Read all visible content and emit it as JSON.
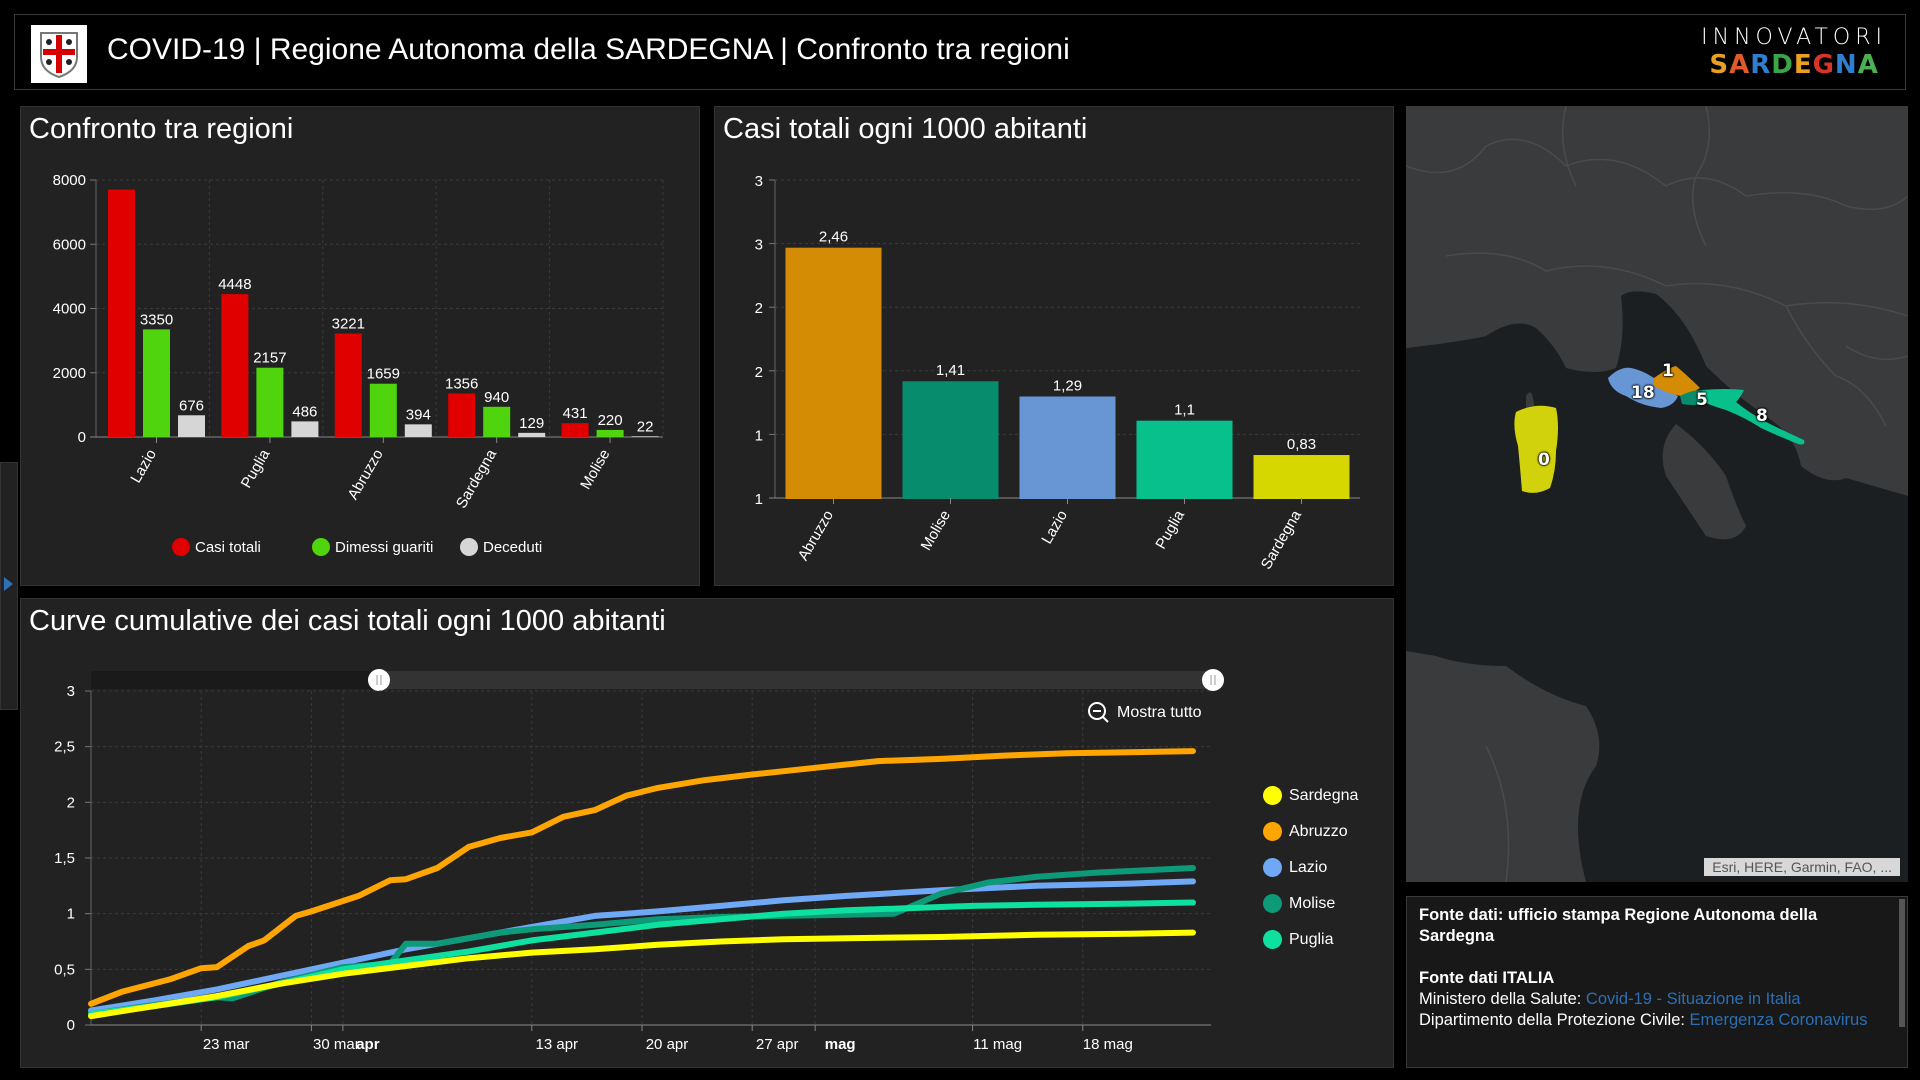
{
  "header": {
    "title": "COVID-19 | Regione Autonoma della SARDEGNA | Confronto tra regioni",
    "logo_icon": "sardinia-coat-of-arms-icon",
    "brand_top": "INNOVATORI",
    "brand_bottom_letters": [
      {
        "ch": "S",
        "color": "#e8a023"
      },
      {
        "ch": "A",
        "color": "#e05a2b"
      },
      {
        "ch": "R",
        "color": "#2e7fd0"
      },
      {
        "ch": "D",
        "color": "#3aa64a"
      },
      {
        "ch": "E",
        "color": "#e8a023"
      },
      {
        "ch": "G",
        "color": "#d9342b"
      },
      {
        "ch": "N",
        "color": "#2e7fd0"
      },
      {
        "ch": "A",
        "color": "#4caf50"
      }
    ]
  },
  "panels": {
    "bar1_title": "Confronto tra regioni",
    "bar2_title": "Casi totali ogni 1000 abitanti",
    "line_title": "Curve cumulative dei casi totali ogni 1000 abitanti"
  },
  "chart_data": [
    {
      "type": "bar",
      "title": "Confronto tra regioni",
      "categories": [
        "Lazio",
        "Puglia",
        "Abruzzo",
        "Sardegna",
        "Molise"
      ],
      "series": [
        {
          "name": "Casi totali",
          "color": "#e00000",
          "values": [
            7700,
            4448,
            3221,
            1356,
            431
          ],
          "labels": [
            "",
            "4448",
            "3221",
            "1356",
            "431"
          ]
        },
        {
          "name": "Dimessi guariti",
          "color": "#4fd40d",
          "values": [
            3350,
            2157,
            1659,
            940,
            220
          ],
          "labels": [
            "3350",
            "2157",
            "1659",
            "940",
            "220"
          ]
        },
        {
          "name": "Deceduti",
          "color": "#d6d6d6",
          "values": [
            676,
            486,
            394,
            129,
            22
          ],
          "labels": [
            "676",
            "486",
            "394",
            "129",
            "22"
          ]
        }
      ],
      "yticks": [
        "0",
        "2000",
        "4000",
        "6000",
        "8000"
      ],
      "ylim": [
        0,
        8000
      ],
      "legend_position": "bottom",
      "grid": true
    },
    {
      "type": "bar",
      "title": "Casi totali ogni 1000 abitanti",
      "categories": [
        "Abruzzo",
        "Molise",
        "Lazio",
        "Puglia",
        "Sardegna"
      ],
      "values": [
        2.46,
        1.41,
        1.29,
        1.1,
        0.83
      ],
      "labels": [
        "2,46",
        "1,41",
        "1,29",
        "1,1",
        "0,83"
      ],
      "colors": [
        "#d48c05",
        "#078c6e",
        "#6896d4",
        "#08c08c",
        "#d6d600"
      ],
      "yticks": [
        "1",
        "1",
        "2",
        "2",
        "3",
        "3"
      ],
      "ylim": [
        0.5,
        3
      ],
      "grid": true
    },
    {
      "type": "line",
      "title": "Curve cumulative dei casi totali ogni 1000 abitanti",
      "xlabel": "",
      "ylabel": "",
      "x_ticks": [
        "23 mar",
        "30 mar",
        "apr",
        "13 apr",
        "20 apr",
        "27 apr",
        "mag",
        "11 mag",
        "18 mag"
      ],
      "x_tick_days": [
        23,
        30,
        32,
        44,
        51,
        58,
        62,
        72,
        79
      ],
      "x_range_days": [
        16,
        86
      ],
      "y_ticks": [
        "0",
        "0,5",
        "1",
        "1,5",
        "2",
        "2,5",
        "3"
      ],
      "ylim": [
        0,
        3
      ],
      "legend_position": "right",
      "grid": true,
      "series": [
        {
          "name": "Sardegna",
          "color": "#ffff00",
          "points": [
            [
              16,
              0.08
            ],
            [
              20,
              0.17
            ],
            [
              24,
              0.26
            ],
            [
              28,
              0.37
            ],
            [
              32,
              0.46
            ],
            [
              36,
              0.53
            ],
            [
              40,
              0.6
            ],
            [
              44,
              0.65
            ],
            [
              48,
              0.68
            ],
            [
              52,
              0.72
            ],
            [
              56,
              0.75
            ],
            [
              60,
              0.77
            ],
            [
              64,
              0.78
            ],
            [
              70,
              0.79
            ],
            [
              76,
              0.81
            ],
            [
              82,
              0.82
            ],
            [
              86,
              0.83
            ]
          ]
        },
        {
          "name": "Abruzzo",
          "color": "#ffa500",
          "points": [
            [
              16,
              0.19
            ],
            [
              18,
              0.3
            ],
            [
              21,
              0.41
            ],
            [
              23,
              0.51
            ],
            [
              24,
              0.52
            ],
            [
              26,
              0.71
            ],
            [
              27,
              0.76
            ],
            [
              29,
              0.98
            ],
            [
              30,
              1.02
            ],
            [
              33,
              1.16
            ],
            [
              35,
              1.3
            ],
            [
              36,
              1.31
            ],
            [
              38,
              1.41
            ],
            [
              40,
              1.6
            ],
            [
              42,
              1.68
            ],
            [
              44,
              1.73
            ],
            [
              46,
              1.87
            ],
            [
              48,
              1.93
            ],
            [
              50,
              2.06
            ],
            [
              52,
              2.13
            ],
            [
              55,
              2.2
            ],
            [
              58,
              2.25
            ],
            [
              60,
              2.28
            ],
            [
              62,
              2.31
            ],
            [
              66,
              2.37
            ],
            [
              70,
              2.39
            ],
            [
              74,
              2.42
            ],
            [
              78,
              2.44
            ],
            [
              82,
              2.45
            ],
            [
              86,
              2.46
            ]
          ]
        },
        {
          "name": "Lazio",
          "color": "#6fa8f5",
          "points": [
            [
              16,
              0.13
            ],
            [
              20,
              0.22
            ],
            [
              24,
              0.32
            ],
            [
              28,
              0.44
            ],
            [
              32,
              0.56
            ],
            [
              36,
              0.68
            ],
            [
              40,
              0.78
            ],
            [
              44,
              0.88
            ],
            [
              48,
              0.98
            ],
            [
              52,
              1.02
            ],
            [
              56,
              1.07
            ],
            [
              60,
              1.12
            ],
            [
              64,
              1.16
            ],
            [
              70,
              1.21
            ],
            [
              76,
              1.25
            ],
            [
              82,
              1.27
            ],
            [
              86,
              1.29
            ]
          ]
        },
        {
          "name": "Molise",
          "color": "#0c9a78",
          "points": [
            [
              16,
              0.1
            ],
            [
              20,
              0.18
            ],
            [
              24,
              0.25
            ],
            [
              25,
              0.24
            ],
            [
              28,
              0.38
            ],
            [
              32,
              0.52
            ],
            [
              35,
              0.55
            ],
            [
              36,
              0.73
            ],
            [
              38,
              0.73
            ],
            [
              40,
              0.78
            ],
            [
              42,
              0.83
            ],
            [
              44,
              0.86
            ],
            [
              48,
              0.9
            ],
            [
              52,
              0.95
            ],
            [
              56,
              0.97
            ],
            [
              60,
              0.98
            ],
            [
              64,
              0.99
            ],
            [
              67,
              1.0
            ],
            [
              70,
              1.18
            ],
            [
              73,
              1.28
            ],
            [
              76,
              1.33
            ],
            [
              80,
              1.37
            ],
            [
              86,
              1.41
            ]
          ]
        },
        {
          "name": "Puglia",
          "color": "#0ee0a0",
          "points": [
            [
              16,
              0.1
            ],
            [
              20,
              0.17
            ],
            [
              24,
              0.25
            ],
            [
              28,
              0.37
            ],
            [
              32,
              0.5
            ],
            [
              36,
              0.58
            ],
            [
              40,
              0.66
            ],
            [
              44,
              0.76
            ],
            [
              48,
              0.83
            ],
            [
              52,
              0.9
            ],
            [
              56,
              0.95
            ],
            [
              60,
              1.0
            ],
            [
              64,
              1.03
            ],
            [
              68,
              1.05
            ],
            [
              72,
              1.07
            ],
            [
              76,
              1.08
            ],
            [
              82,
              1.09
            ],
            [
              86,
              1.1
            ]
          ]
        }
      ]
    }
  ],
  "line_controls": {
    "zoom_out_label": "Mostra tutto",
    "zoom_out_icon": "zoom-out-icon",
    "range_start_fraction": 0.25,
    "range_end_fraction": 1.0
  },
  "map": {
    "region_labels": [
      {
        "region": "Lazio",
        "value": "18",
        "color": "#6896d4"
      },
      {
        "region": "Abruzzo",
        "value": "1",
        "color": "#d48c05"
      },
      {
        "region": "Molise",
        "value": "5",
        "color": "#078c6e"
      },
      {
        "region": "Puglia",
        "value": "8",
        "color": "#08c08c"
      },
      {
        "region": "Sardegna",
        "value": "0",
        "color": "#d6d600"
      }
    ],
    "attribution": "Esri, HERE, Garmin, FAO, ..."
  },
  "info": {
    "source1": "Fonte dati: ufficio stampa Regione Autonoma della Sardegna",
    "source2_title": "Fonte dati ITALIA",
    "line1_prefix": "Ministero della Salute: ",
    "line1_link": "Covid-19 - Situazione in Italia",
    "line2_prefix": "Dipartimento della Protezione Civile: ",
    "line2_link": "Emergenza Coronavirus"
  }
}
